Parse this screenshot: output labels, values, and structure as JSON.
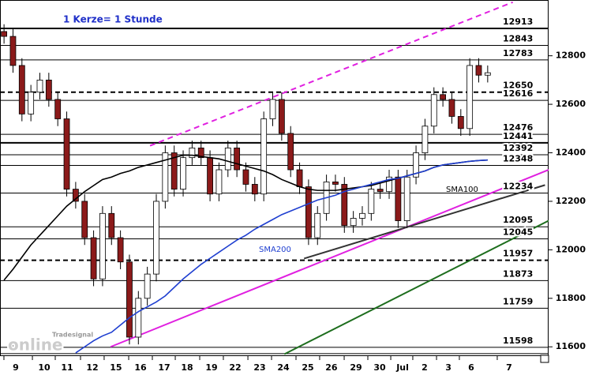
{
  "chart_data": {
    "type": "candlestick",
    "annotation": "1 Kerze= 1 Stunde",
    "watermark": [
      "Tradesignal",
      "online"
    ],
    "up_color": "#ffffff",
    "down_color": "#8b1a1a",
    "xlim": [
      -0.45,
      60.8
    ],
    "ylim": [
      11565,
      13030
    ],
    "yticks": [
      11600,
      11800,
      12000,
      12200,
      12400,
      12600,
      12800
    ],
    "xticks": [
      {
        "value": 1.31,
        "label": "9"
      },
      {
        "value": 4.49,
        "label": "10"
      },
      {
        "value": 7.04,
        "label": "11"
      },
      {
        "value": 9.86,
        "label": "12"
      },
      {
        "value": 12.5,
        "label": "15"
      },
      {
        "value": 15.24,
        "label": "16"
      },
      {
        "value": 17.88,
        "label": "17"
      },
      {
        "value": 20.44,
        "label": "18"
      },
      {
        "value": 23.17,
        "label": "19"
      },
      {
        "value": 25.81,
        "label": "22"
      },
      {
        "value": 28.55,
        "label": "23"
      },
      {
        "value": 31.19,
        "label": "24"
      },
      {
        "value": 33.92,
        "label": "25"
      },
      {
        "value": 36.56,
        "label": "26"
      },
      {
        "value": 39.3,
        "label": "29"
      },
      {
        "value": 41.94,
        "label": "30"
      },
      {
        "value": 44.5,
        "label": "Jul"
      },
      {
        "value": 46.96,
        "label": "2"
      },
      {
        "value": 49.61,
        "label": "3"
      },
      {
        "value": 52.16,
        "label": "6"
      },
      {
        "value": 56.39,
        "label": "7"
      }
    ],
    "open": [
      12900,
      12880,
      12760,
      12560,
      12650,
      12700,
      12620,
      12540,
      12250,
      12200,
      12050,
      11880,
      12150,
      12050,
      11950,
      11640,
      11800,
      11900,
      12200,
      12400,
      12250,
      12380,
      12420,
      12380,
      12230,
      12330,
      12420,
      12330,
      12270,
      12230,
      12540,
      12620,
      12480,
      12330,
      12260,
      12050,
      12150,
      12280,
      12270,
      12100,
      12130,
      12150,
      12250,
      12240,
      12300,
      12120,
      12300,
      12400,
      12510,
      12640,
      12620,
      12550,
      12500,
      12760,
      12720
    ],
    "high": [
      12930,
      12910,
      12790,
      12680,
      12730,
      12730,
      12650,
      12570,
      12280,
      12230,
      12080,
      12180,
      12180,
      12080,
      11980,
      11830,
      11930,
      12230,
      12430,
      12430,
      12410,
      12450,
      12450,
      12410,
      12360,
      12450,
      12450,
      12360,
      12300,
      12570,
      12650,
      12650,
      12510,
      12360,
      12290,
      12180,
      12310,
      12310,
      12300,
      12160,
      12180,
      12280,
      12280,
      12330,
      12330,
      12330,
      12430,
      12540,
      12670,
      12670,
      12650,
      12580,
      12790,
      12790,
      12760
    ],
    "low": [
      12850,
      12730,
      12530,
      12530,
      12620,
      12590,
      12510,
      12220,
      12170,
      12020,
      11850,
      11850,
      12020,
      11920,
      11610,
      11610,
      11770,
      11870,
      12170,
      12220,
      12220,
      12350,
      12350,
      12200,
      12200,
      12300,
      12300,
      12240,
      12200,
      12200,
      12510,
      12450,
      12300,
      12230,
      12020,
      12020,
      12120,
      12240,
      12070,
      12070,
      12100,
      12120,
      12210,
      12210,
      12090,
      12090,
      12270,
      12370,
      12480,
      12590,
      12520,
      12470,
      12470,
      12690,
      12690
    ],
    "close": [
      12880,
      12760,
      12560,
      12650,
      12700,
      12620,
      12540,
      12250,
      12200,
      12050,
      11880,
      12150,
      12050,
      11950,
      11640,
      11800,
      11900,
      12200,
      12400,
      12250,
      12380,
      12420,
      12380,
      12230,
      12330,
      12420,
      12330,
      12270,
      12230,
      12540,
      12620,
      12480,
      12330,
      12260,
      12050,
      12150,
      12280,
      12270,
      12100,
      12130,
      12150,
      12250,
      12240,
      12300,
      12120,
      12300,
      12400,
      12510,
      12640,
      12620,
      12550,
      12500,
      12760,
      12720,
      12730
    ],
    "series": [
      {
        "name": "SMA100",
        "color": "#000000",
        "values": [
          11875,
          11920,
          11970,
          12020,
          12060,
          12100,
          12140,
          12180,
          12210,
          12240,
          12265,
          12290,
          12300,
          12315,
          12325,
          12340,
          12350,
          12360,
          12370,
          12380,
          12390,
          12390,
          12385,
          12380,
          12375,
          12365,
          12355,
          12345,
          12335,
          12325,
          12310,
          12290,
          12275,
          12260,
          12250,
          12245,
          12245,
          12245,
          12250,
          12255,
          12260,
          12265,
          12275,
          12285,
          12295,
          12305,
          12315,
          12325,
          12340,
          12350,
          12355,
          12360,
          12365,
          12368,
          12370
        ]
      },
      {
        "name": "SMA200",
        "color": "#1f3fd0",
        "values": [
          null,
          null,
          null,
          null,
          null,
          null,
          null,
          null,
          11575,
          11600,
          11625,
          11645,
          11660,
          11690,
          11720,
          11745,
          11765,
          11785,
          11810,
          11845,
          11880,
          11910,
          11940,
          11965,
          11990,
          12015,
          12040,
          12060,
          12085,
          12105,
          12125,
          12145,
          12160,
          12175,
          12190,
          12205,
          12215,
          12225,
          12240,
          12250,
          12260,
          12270,
          12280,
          12290,
          12295,
          12305,
          12315,
          12325,
          12340,
          12350,
          12355,
          12360,
          12365,
          12368,
          12370
        ]
      }
    ],
    "trendlines": [
      {
        "color": "#e020e0",
        "dashed": false,
        "from": [
          11.9,
          11600
        ],
        "to": [
          60.8,
          12330
        ]
      },
      {
        "color": "#e020e0",
        "dashed": true,
        "from": [
          16.3,
          12429
        ],
        "to": [
          56.8,
          13021
        ]
      },
      {
        "color": "#1e6e1e",
        "dashed": false,
        "from": [
          31.3,
          11570
        ],
        "to": [
          60.8,
          12120
        ]
      },
      {
        "color": "#333333",
        "dashed": false,
        "from": [
          33.5,
          11964
        ],
        "to": [
          60.4,
          12267
        ]
      }
    ],
    "levels": [
      {
        "value": 12913,
        "dashed": false,
        "bold": true
      },
      {
        "value": 12843,
        "dashed": false,
        "bold": false
      },
      {
        "value": 12783,
        "dashed": false,
        "bold": false
      },
      {
        "value": 12650,
        "dashed": true,
        "bold": true
      },
      {
        "value": 12616,
        "dashed": false,
        "bold": false
      },
      {
        "value": 12476,
        "dashed": false,
        "bold": false
      },
      {
        "value": 12441,
        "dashed": false,
        "bold": true
      },
      {
        "value": 12392,
        "dashed": false,
        "bold": false
      },
      {
        "value": 12348,
        "dashed": false,
        "bold": false
      },
      {
        "value": 12234,
        "dashed": false,
        "bold": false
      },
      {
        "value": 12095,
        "dashed": false,
        "bold": false
      },
      {
        "value": 12045,
        "dashed": false,
        "bold": false
      },
      {
        "value": 11957,
        "dashed": true,
        "bold": true
      },
      {
        "value": 11873,
        "dashed": false,
        "bold": false
      },
      {
        "value": 11759,
        "dashed": false,
        "bold": false
      },
      {
        "value": 11598,
        "dashed": false,
        "bold": false
      },
      {
        "value": 11572,
        "dashed": false,
        "bold": false,
        "label_align": "left"
      }
    ]
  }
}
